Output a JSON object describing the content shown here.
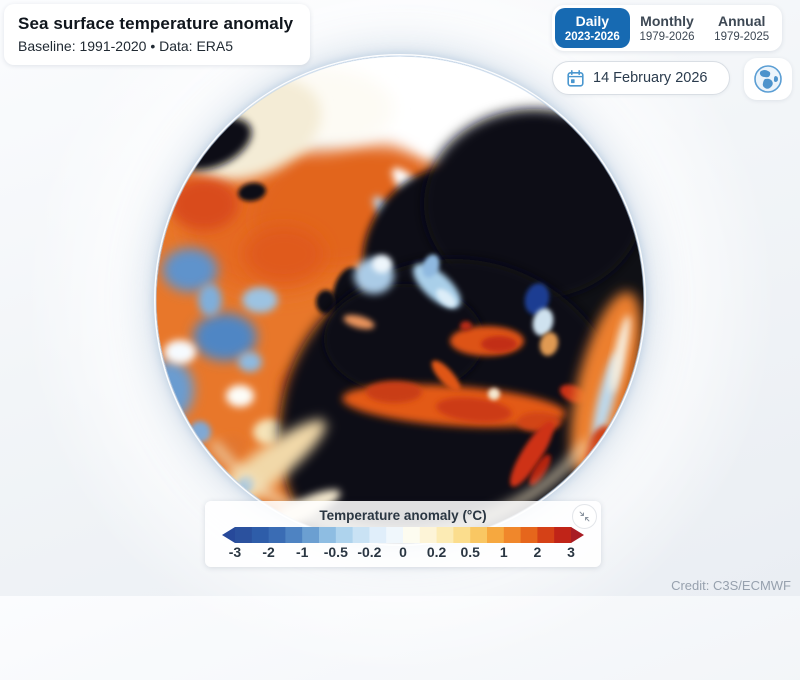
{
  "header": {
    "title": "Sea surface temperature anomaly",
    "subtitle": "Baseline: 1991-2020 • Data: ERA5"
  },
  "tabs": [
    {
      "label": "Daily",
      "range": "2023-2026",
      "active": true
    },
    {
      "label": "Monthly",
      "range": "1979-2026",
      "active": false
    },
    {
      "label": "Annual",
      "range": "1979-2025",
      "active": false
    }
  ],
  "controls": {
    "date_value": "14 February 2026",
    "calendar_icon": "calendar-icon",
    "globe_icon": "globe-icon"
  },
  "legend": {
    "title": "Temperature anomaly (°C)",
    "ticks": [
      "-3",
      "-2",
      "-1",
      "-0.5",
      "-0.2",
      "0",
      "0.2",
      "0.5",
      "1",
      "2",
      "3"
    ],
    "cell_colors": [
      "#2b519e",
      "#2e5da9",
      "#3a6cb4",
      "#4e83c2",
      "#6b9fd1",
      "#8ebde2",
      "#aed3ed",
      "#c9e2f4",
      "#e0eefa",
      "#f0f7fc",
      "#fdfcf0",
      "#fdf4d7",
      "#fcebb4",
      "#fbdd8d",
      "#f9c763",
      "#f6a83f",
      "#f0872b",
      "#e6661c",
      "#d54117",
      "#c02418"
    ],
    "arrow_left_color": "#27499a",
    "arrow_right_color": "#a81c24",
    "collapse_icon": "collapse-arrows-icon"
  },
  "credit": "Credit: C3S/ECMWF",
  "theme": {
    "accent_blue": "#176ab2",
    "land_color": "#0f1015"
  }
}
